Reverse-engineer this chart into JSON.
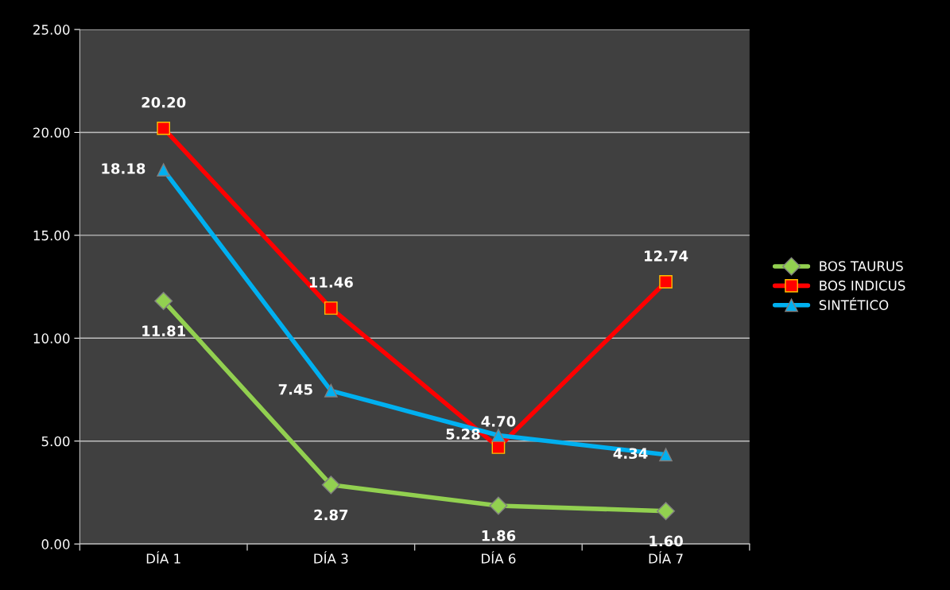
{
  "chart_data": {
    "type": "line",
    "categories": [
      "DÍA 1",
      "DÍA 3",
      "DÍA 6",
      "DÍA 7"
    ],
    "series": [
      {
        "name": "BOS TAURUS",
        "color": "#92d050",
        "marker": "diamond",
        "values": [
          11.81,
          2.87,
          1.86,
          1.6
        ],
        "value_labels": [
          "11.81",
          "2.87",
          "1.86",
          "1.60"
        ]
      },
      {
        "name": "BOS INDICUS",
        "color": "#ff0000",
        "marker": "square",
        "values": [
          20.2,
          11.46,
          4.7,
          12.74
        ],
        "value_labels": [
          "20.20",
          "11.46",
          "4.70",
          "12.74"
        ]
      },
      {
        "name": "SINTÉTICO",
        "color": "#00b0f0",
        "marker": "triangle",
        "values": [
          18.18,
          7.45,
          5.28,
          4.34
        ],
        "value_labels": [
          "18.18",
          "7.45",
          "5.28",
          "4.34"
        ]
      }
    ],
    "ylim": [
      0,
      25
    ],
    "yticks": [
      {
        "value": 0,
        "label": "0.00"
      },
      {
        "value": 5,
        "label": "5.00"
      },
      {
        "value": 10,
        "label": "10.00"
      },
      {
        "value": 15,
        "label": "15.00"
      },
      {
        "value": 20,
        "label": "20.00"
      },
      {
        "value": 25,
        "label": "25.00"
      }
    ],
    "grid": "y",
    "legend": "right"
  }
}
